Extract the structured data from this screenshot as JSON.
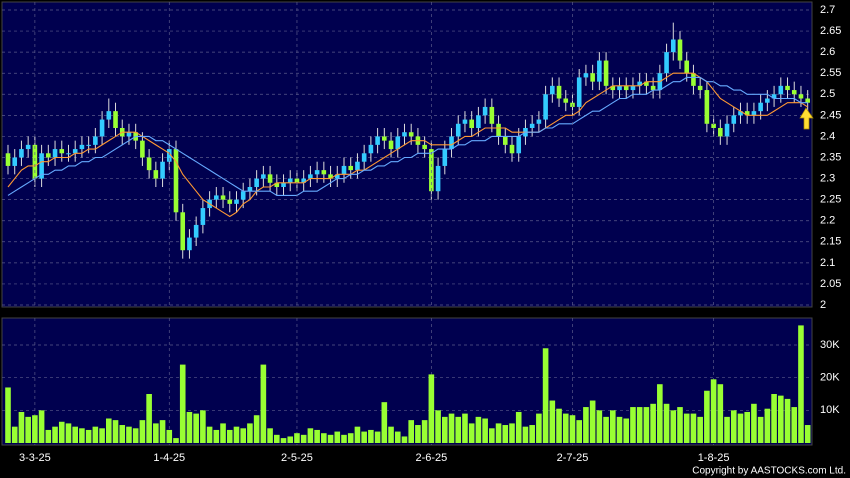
{
  "chart_data": [
    {
      "type": "candlestick",
      "up_color": "#33ccff",
      "down_color": "#99ff33",
      "ylim": [
        2,
        2.7
      ],
      "yticks": [
        2,
        2.05,
        2.1,
        2.15,
        2.2,
        2.25,
        2.3,
        2.35,
        2.4,
        2.45,
        2.5,
        2.55,
        2.6,
        2.65,
        2.7
      ],
      "grid": true,
      "open": [
        2.36,
        2.33,
        2.35,
        2.37,
        2.38,
        2.3,
        2.36,
        2.35,
        2.37,
        2.36,
        2.36,
        2.37,
        2.38,
        2.38,
        2.4,
        2.44,
        2.46,
        2.42,
        2.4,
        2.41,
        2.39,
        2.35,
        2.32,
        2.3,
        2.34,
        2.37,
        2.22,
        2.13,
        2.16,
        2.19,
        2.23,
        2.25,
        2.26,
        2.25,
        2.24,
        2.25,
        2.27,
        2.28,
        2.3,
        2.31,
        2.29,
        2.28,
        2.29,
        2.3,
        2.29,
        2.3,
        2.31,
        2.32,
        2.31,
        2.3,
        2.31,
        2.33,
        2.32,
        2.34,
        2.36,
        2.38,
        2.4,
        2.39,
        2.37,
        2.4,
        2.41,
        2.4,
        2.38,
        2.37,
        2.27,
        2.33,
        2.37,
        2.4,
        2.43,
        2.44,
        2.42,
        2.45,
        2.47,
        2.43,
        2.4,
        2.38,
        2.36,
        2.4,
        2.42,
        2.43,
        2.44,
        2.5,
        2.52,
        2.49,
        2.48,
        2.47,
        2.54,
        2.55,
        2.53,
        2.58,
        2.52,
        2.51,
        2.52,
        2.51,
        2.52,
        2.53,
        2.52,
        2.51,
        2.55,
        2.6,
        2.63,
        2.58,
        2.55,
        2.52,
        2.51,
        2.43,
        2.42,
        2.4,
        2.43,
        2.45,
        2.46,
        2.45,
        2.46,
        2.48,
        2.49,
        2.5,
        2.52,
        2.51,
        2.5,
        2.49
      ],
      "high": [
        2.38,
        2.37,
        2.39,
        2.4,
        2.4,
        2.38,
        2.38,
        2.39,
        2.39,
        2.38,
        2.39,
        2.4,
        2.4,
        2.42,
        2.46,
        2.49,
        2.48,
        2.44,
        2.43,
        2.43,
        2.41,
        2.37,
        2.34,
        2.36,
        2.39,
        2.39,
        2.24,
        2.18,
        2.21,
        2.25,
        2.27,
        2.28,
        2.28,
        2.27,
        2.27,
        2.29,
        2.3,
        2.32,
        2.33,
        2.33,
        2.31,
        2.31,
        2.32,
        2.32,
        2.32,
        2.33,
        2.34,
        2.34,
        2.33,
        2.33,
        2.35,
        2.35,
        2.36,
        2.38,
        2.4,
        2.42,
        2.42,
        2.41,
        2.42,
        2.43,
        2.43,
        2.42,
        2.4,
        2.39,
        2.35,
        2.39,
        2.42,
        2.45,
        2.46,
        2.46,
        2.47,
        2.49,
        2.49,
        2.45,
        2.42,
        2.4,
        2.42,
        2.44,
        2.45,
        2.46,
        2.52,
        2.54,
        2.54,
        2.51,
        2.5,
        2.56,
        2.57,
        2.57,
        2.6,
        2.6,
        2.54,
        2.54,
        2.54,
        2.54,
        2.55,
        2.55,
        2.54,
        2.57,
        2.62,
        2.67,
        2.65,
        2.6,
        2.57,
        2.54,
        2.53,
        2.45,
        2.44,
        2.45,
        2.47,
        2.48,
        2.48,
        2.48,
        2.5,
        2.51,
        2.52,
        2.54,
        2.54,
        2.53,
        2.52,
        2.51
      ],
      "low": [
        2.31,
        2.31,
        2.33,
        2.35,
        2.28,
        2.28,
        2.33,
        2.33,
        2.34,
        2.34,
        2.34,
        2.35,
        2.36,
        2.36,
        2.38,
        2.42,
        2.4,
        2.38,
        2.38,
        2.37,
        2.33,
        2.3,
        2.28,
        2.28,
        2.32,
        2.2,
        2.11,
        2.11,
        2.14,
        2.17,
        2.21,
        2.23,
        2.23,
        2.22,
        2.22,
        2.23,
        2.25,
        2.26,
        2.28,
        2.27,
        2.26,
        2.26,
        2.27,
        2.27,
        2.27,
        2.28,
        2.29,
        2.29,
        2.28,
        2.28,
        2.29,
        2.3,
        2.3,
        2.32,
        2.34,
        2.36,
        2.37,
        2.35,
        2.35,
        2.38,
        2.38,
        2.36,
        2.35,
        2.25,
        2.25,
        2.31,
        2.35,
        2.38,
        2.41,
        2.4,
        2.4,
        2.43,
        2.41,
        2.38,
        2.36,
        2.34,
        2.34,
        2.38,
        2.4,
        2.41,
        2.42,
        2.48,
        2.47,
        2.46,
        2.45,
        2.45,
        2.52,
        2.51,
        2.51,
        2.5,
        2.49,
        2.49,
        2.49,
        2.49,
        2.5,
        2.5,
        2.49,
        2.49,
        2.53,
        2.58,
        2.56,
        2.53,
        2.5,
        2.49,
        2.41,
        2.4,
        2.38,
        2.38,
        2.41,
        2.43,
        2.43,
        2.43,
        2.44,
        2.46,
        2.47,
        2.48,
        2.49,
        2.48,
        2.47,
        2.46
      ],
      "close": [
        2.33,
        2.35,
        2.37,
        2.38,
        2.3,
        2.36,
        2.35,
        2.37,
        2.36,
        2.36,
        2.37,
        2.38,
        2.38,
        2.4,
        2.44,
        2.46,
        2.42,
        2.4,
        2.41,
        2.39,
        2.35,
        2.32,
        2.3,
        2.34,
        2.37,
        2.22,
        2.13,
        2.16,
        2.19,
        2.23,
        2.25,
        2.26,
        2.25,
        2.24,
        2.25,
        2.27,
        2.28,
        2.3,
        2.31,
        2.29,
        2.28,
        2.29,
        2.3,
        2.29,
        2.3,
        2.31,
        2.32,
        2.31,
        2.3,
        2.31,
        2.33,
        2.32,
        2.34,
        2.36,
        2.38,
        2.4,
        2.39,
        2.37,
        2.4,
        2.41,
        2.4,
        2.38,
        2.37,
        2.27,
        2.33,
        2.37,
        2.4,
        2.43,
        2.44,
        2.42,
        2.45,
        2.47,
        2.43,
        2.4,
        2.38,
        2.36,
        2.4,
        2.42,
        2.43,
        2.44,
        2.5,
        2.52,
        2.49,
        2.48,
        2.47,
        2.54,
        2.55,
        2.53,
        2.58,
        2.52,
        2.51,
        2.52,
        2.51,
        2.52,
        2.53,
        2.52,
        2.51,
        2.55,
        2.6,
        2.63,
        2.58,
        2.55,
        2.52,
        2.51,
        2.43,
        2.42,
        2.4,
        2.43,
        2.45,
        2.46,
        2.45,
        2.46,
        2.48,
        2.49,
        2.5,
        2.52,
        2.51,
        2.5,
        2.49,
        2.48
      ],
      "series": [
        {
          "color": "#ff9933",
          "values": [
            2.28,
            2.3,
            2.32,
            2.33,
            2.33,
            2.34,
            2.34,
            2.35,
            2.35,
            2.35,
            2.36,
            2.36,
            2.37,
            2.37,
            2.38,
            2.39,
            2.4,
            2.41,
            2.41,
            2.41,
            2.4,
            2.39,
            2.38,
            2.37,
            2.36,
            2.34,
            2.31,
            2.29,
            2.27,
            2.25,
            2.24,
            2.23,
            2.22,
            2.21,
            2.22,
            2.24,
            2.25,
            2.27,
            2.28,
            2.28,
            2.29,
            2.29,
            2.29,
            2.29,
            2.29,
            2.3,
            2.3,
            2.3,
            2.3,
            2.31,
            2.31,
            2.31,
            2.32,
            2.32,
            2.33,
            2.34,
            2.35,
            2.36,
            2.37,
            2.38,
            2.39,
            2.39,
            2.39,
            2.38,
            2.38,
            2.38,
            2.38,
            2.39,
            2.4,
            2.4,
            2.41,
            2.42,
            2.42,
            2.42,
            2.42,
            2.41,
            2.41,
            2.41,
            2.41,
            2.41,
            2.42,
            2.43,
            2.44,
            2.45,
            2.45,
            2.46,
            2.48,
            2.49,
            2.5,
            2.51,
            2.52,
            2.52,
            2.52,
            2.52,
            2.52,
            2.53,
            2.53,
            2.53,
            2.54,
            2.55,
            2.55,
            2.55,
            2.55,
            2.54,
            2.53,
            2.51,
            2.49,
            2.48,
            2.47,
            2.46,
            2.45,
            2.45,
            2.45,
            2.45,
            2.46,
            2.47,
            2.48,
            2.48,
            2.48,
            2.47
          ]
        },
        {
          "color": "#66aaff",
          "values": [
            2.26,
            2.27,
            2.28,
            2.29,
            2.3,
            2.31,
            2.31,
            2.32,
            2.32,
            2.33,
            2.33,
            2.34,
            2.34,
            2.35,
            2.35,
            2.36,
            2.37,
            2.38,
            2.39,
            2.4,
            2.4,
            2.4,
            2.39,
            2.39,
            2.38,
            2.37,
            2.36,
            2.35,
            2.34,
            2.33,
            2.32,
            2.31,
            2.3,
            2.29,
            2.28,
            2.27,
            2.27,
            2.27,
            2.27,
            2.27,
            2.26,
            2.26,
            2.26,
            2.26,
            2.27,
            2.27,
            2.27,
            2.28,
            2.29,
            2.3,
            2.3,
            2.31,
            2.31,
            2.32,
            2.32,
            2.33,
            2.33,
            2.34,
            2.34,
            2.35,
            2.35,
            2.36,
            2.36,
            2.36,
            2.37,
            2.37,
            2.37,
            2.38,
            2.38,
            2.39,
            2.39,
            2.39,
            2.4,
            2.4,
            2.4,
            2.4,
            2.4,
            2.41,
            2.41,
            2.41,
            2.42,
            2.42,
            2.43,
            2.43,
            2.43,
            2.44,
            2.45,
            2.46,
            2.46,
            2.47,
            2.48,
            2.49,
            2.49,
            2.5,
            2.5,
            2.5,
            2.51,
            2.51,
            2.52,
            2.53,
            2.53,
            2.54,
            2.54,
            2.54,
            2.53,
            2.53,
            2.52,
            2.52,
            2.51,
            2.51,
            2.5,
            2.5,
            2.5,
            2.5,
            2.49,
            2.49,
            2.49,
            2.49,
            2.48,
            2.48
          ]
        }
      ]
    },
    {
      "type": "bar",
      "color": "#99ff33",
      "ylim": [
        0,
        37500
      ],
      "yticks": [
        {
          "value": 10000,
          "label": "10K"
        },
        {
          "value": 20000,
          "label": "20K"
        },
        {
          "value": 30000,
          "label": "30K"
        }
      ],
      "grid": true,
      "categories": [
        null,
        null,
        null,
        null,
        "3-3-25",
        null,
        null,
        null,
        null,
        null,
        null,
        null,
        null,
        null,
        null,
        null,
        null,
        null,
        null,
        null,
        null,
        null,
        null,
        null,
        "1-4-25",
        null,
        null,
        null,
        null,
        null,
        null,
        null,
        null,
        null,
        null,
        null,
        null,
        null,
        null,
        null,
        null,
        null,
        null,
        "2-5-25",
        null,
        null,
        null,
        null,
        null,
        null,
        null,
        null,
        null,
        null,
        null,
        null,
        null,
        null,
        null,
        null,
        null,
        null,
        null,
        "2-6-25",
        null,
        null,
        null,
        null,
        null,
        null,
        null,
        null,
        null,
        null,
        null,
        null,
        null,
        null,
        null,
        null,
        null,
        null,
        null,
        null,
        "2-7-25",
        null,
        null,
        null,
        null,
        null,
        null,
        null,
        null,
        null,
        null,
        null,
        null,
        null,
        null,
        null,
        null,
        null,
        null,
        null,
        null,
        "1-8-25",
        null,
        null,
        null,
        null,
        null,
        null,
        null,
        null,
        null,
        null,
        null,
        null,
        null,
        null
      ],
      "values": [
        17000,
        5000,
        9500,
        8000,
        8500,
        10000,
        4000,
        5000,
        6500,
        6000,
        5000,
        4500,
        4000,
        5000,
        4500,
        7500,
        7000,
        5500,
        5000,
        4500,
        7000,
        15000,
        6000,
        7000,
        4000,
        1500,
        24000,
        9500,
        9000,
        10000,
        5000,
        4000,
        6000,
        4000,
        5000,
        4500,
        6000,
        8500,
        24000,
        4500,
        2500,
        1500,
        2000,
        3000,
        2500,
        4500,
        4000,
        3000,
        2500,
        3500,
        2500,
        3000,
        5000,
        3500,
        4000,
        3500,
        12500,
        5000,
        3500,
        2000,
        7000,
        5500,
        7000,
        21000,
        10000,
        8000,
        9000,
        8000,
        9000,
        6000,
        8000,
        7500,
        4500,
        6000,
        5500,
        6000,
        9500,
        5000,
        5500,
        9000,
        29000,
        13000,
        10500,
        9000,
        8500,
        7000,
        11000,
        13000,
        10000,
        8000,
        10000,
        8000,
        7500,
        11000,
        11000,
        11000,
        12000,
        18000,
        12000,
        10000,
        11000,
        9000,
        9000,
        8000,
        16000,
        19500,
        18000,
        8000,
        10000,
        9000,
        9500,
        12000,
        8000,
        10500,
        15000,
        14500,
        13500,
        11000,
        36000,
        5500
      ]
    },
    {
      "type": "note",
      "text": "Copyright by AASTOCKS.com Ltd."
    }
  ]
}
